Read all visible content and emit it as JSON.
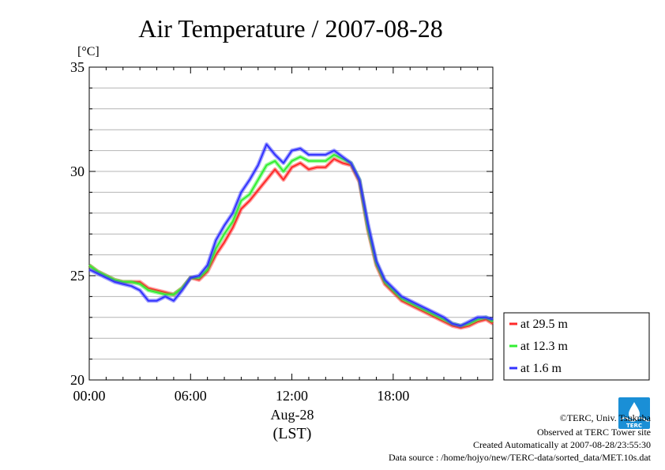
{
  "chart_data": {
    "type": "line",
    "title": "Air Temperature / 2007-08-28",
    "ylabel": "[°C]",
    "xlabel_date": "Aug-28",
    "xlabel_units": "(LST)",
    "xlim": [
      0,
      23.9
    ],
    "ylim": [
      20,
      35
    ],
    "x_ticks": [
      {
        "value": 0,
        "label": "00:00"
      },
      {
        "value": 6,
        "label": "06:00"
      },
      {
        "value": 12,
        "label": "12:00"
      },
      {
        "value": 18,
        "label": "18:00"
      }
    ],
    "y_ticks": [
      {
        "value": 20,
        "label": "20"
      },
      {
        "value": 25,
        "label": "25"
      },
      {
        "value": 30,
        "label": "30"
      },
      {
        "value": 35,
        "label": "35"
      }
    ],
    "grid": true,
    "legend_position": "right",
    "x": [
      0,
      0.5,
      1,
      1.5,
      2,
      2.5,
      3,
      3.5,
      4,
      4.5,
      5,
      5.5,
      6,
      6.5,
      7,
      7.5,
      8,
      8.5,
      9,
      9.5,
      10,
      10.5,
      11,
      11.5,
      12,
      12.5,
      13,
      13.5,
      14,
      14.5,
      15,
      15.5,
      16,
      16.5,
      17,
      17.5,
      18,
      18.5,
      19,
      19.5,
      20,
      20.5,
      21,
      21.5,
      22,
      22.5,
      23,
      23.5,
      23.9
    ],
    "series": [
      {
        "name": "at 29.5 m",
        "color": "#ff2a2a",
        "values": [
          25.5,
          25.2,
          25.0,
          24.8,
          24.7,
          24.7,
          24.7,
          24.4,
          24.3,
          24.2,
          24.1,
          24.4,
          24.9,
          24.8,
          25.2,
          26.0,
          26.6,
          27.3,
          28.2,
          28.6,
          29.1,
          29.6,
          30.1,
          29.6,
          30.2,
          30.4,
          30.1,
          30.2,
          30.2,
          30.6,
          30.4,
          30.3,
          29.5,
          27.2,
          25.5,
          24.6,
          24.2,
          23.8,
          23.6,
          23.4,
          23.2,
          23.0,
          22.8,
          22.6,
          22.5,
          22.6,
          22.8,
          22.9,
          22.7
        ]
      },
      {
        "name": "at 12.3 m",
        "color": "#33ee33",
        "values": [
          25.5,
          25.2,
          25.0,
          24.8,
          24.7,
          24.7,
          24.6,
          24.3,
          24.2,
          24.1,
          24.1,
          24.4,
          24.9,
          24.9,
          25.3,
          26.3,
          27.0,
          27.6,
          28.6,
          28.9,
          29.6,
          30.3,
          30.5,
          30.0,
          30.5,
          30.7,
          30.5,
          30.5,
          30.5,
          30.8,
          30.6,
          30.4,
          29.6,
          27.3,
          25.6,
          24.7,
          24.3,
          23.9,
          23.7,
          23.5,
          23.3,
          23.1,
          22.9,
          22.7,
          22.6,
          22.7,
          22.9,
          23.0,
          22.8
        ]
      },
      {
        "name": "at 1.6 m",
        "color": "#3333ff",
        "values": [
          25.3,
          25.1,
          24.9,
          24.7,
          24.6,
          24.5,
          24.3,
          23.8,
          23.8,
          24.0,
          23.8,
          24.3,
          24.9,
          25.0,
          25.5,
          26.7,
          27.4,
          28.0,
          29.0,
          29.6,
          30.3,
          31.3,
          30.8,
          30.4,
          31.0,
          31.1,
          30.8,
          30.8,
          30.8,
          31.0,
          30.7,
          30.4,
          29.6,
          27.5,
          25.7,
          24.8,
          24.4,
          24.0,
          23.8,
          23.6,
          23.4,
          23.2,
          23.0,
          22.7,
          22.6,
          22.8,
          23.0,
          23.0,
          22.9
        ]
      }
    ]
  },
  "footer": {
    "copyright": "©TERC, Univ. Tsukuba",
    "observed": "Observed at TERC Tower site",
    "created": "Created Automatically at 2007-08-28/23:55:30",
    "source": "Data source : /home/hojyo/new/TERC-data/sorted_data/MET.10s.dat"
  },
  "logo": {
    "label": "TERC",
    "color": "#1a8fd6"
  }
}
